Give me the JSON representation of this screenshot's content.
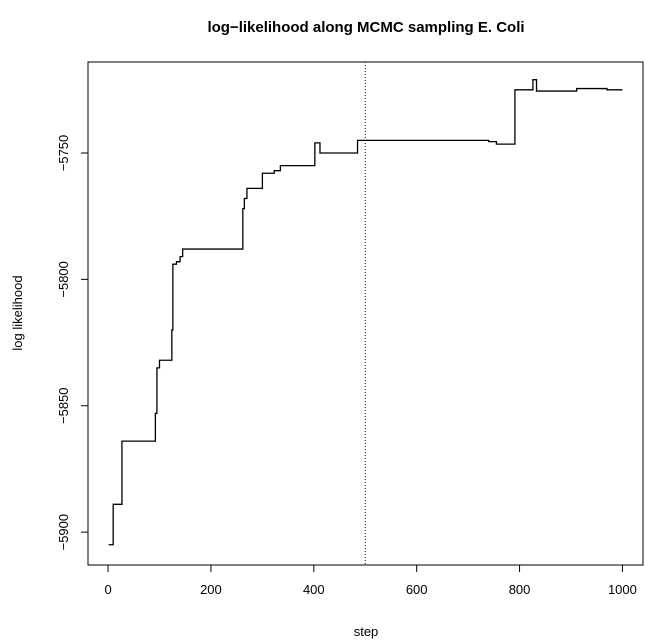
{
  "chart_data": {
    "type": "line",
    "line_style": "step",
    "title": "log−likelihood along MCMC sampling E. Coli",
    "x_label": "step",
    "y_label": "log likelihood",
    "x": [
      1,
      10,
      27,
      92,
      95,
      100,
      124,
      126,
      133,
      140,
      145,
      262,
      265,
      270,
      300,
      323,
      335,
      402,
      412,
      485,
      740,
      755,
      791,
      826,
      833,
      911,
      970,
      1000
    ],
    "series": [
      {
        "color": "#000000",
        "values": [
          -5905,
          -5889,
          -5864,
          -5853,
          -5835,
          -5832,
          -5820,
          -5794,
          -5793,
          -5791,
          -5788,
          -5772,
          -5768,
          -5764,
          -5758,
          -5757,
          -5755,
          -5746,
          -5750,
          -5745,
          -5745.5,
          -5746.5,
          -5725,
          -5721,
          -5725.5,
          -5724.5,
          -5725,
          -5725
        ]
      }
    ],
    "vline": 500,
    "xlim": [
      -39,
      1040
    ],
    "ylim": [
      -5913,
      -5714
    ],
    "xticks": [
      0,
      200,
      400,
      600,
      800,
      1000
    ],
    "yticks": [
      {
        "value": -5900,
        "label": "−5900"
      },
      {
        "value": -5850,
        "label": "−5850"
      },
      {
        "value": -5800,
        "label": "−5800"
      },
      {
        "value": -5750,
        "label": "−5750"
      }
    ]
  }
}
